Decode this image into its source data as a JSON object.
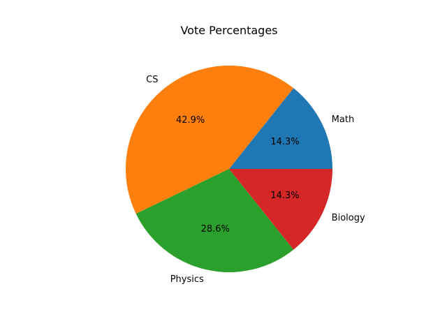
{
  "chart_data": {
    "type": "pie",
    "title": "Vote Percentages",
    "categories": [
      "Math",
      "CS",
      "Physics",
      "Biology"
    ],
    "values": [
      14.3,
      42.9,
      28.6,
      14.3
    ],
    "value_labels": [
      "14.3%",
      "42.9%",
      "28.6%",
      "14.3%"
    ],
    "colors": [
      "#1f77b4",
      "#ff7f0e",
      "#2ca02c",
      "#d62728"
    ],
    "start_angle_deg": 0,
    "direction": "counterclockwise",
    "legend": "none"
  }
}
